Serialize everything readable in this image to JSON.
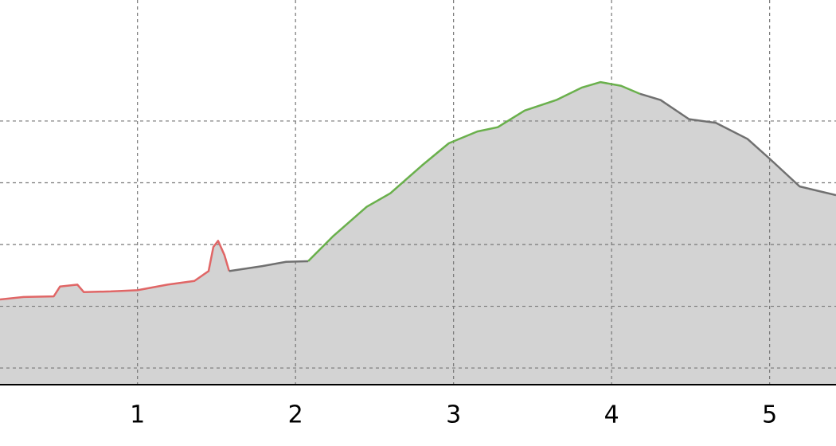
{
  "chart_data": {
    "type": "area",
    "xlim": [
      0.13,
      5.42
    ],
    "xticks": [
      1,
      2,
      3,
      4,
      5
    ],
    "ylim": [
      -0.27,
      5.96
    ],
    "yticks": [
      0,
      1,
      2,
      3,
      4
    ],
    "grid": true,
    "fill_color": "#d3d3d3",
    "series": [
      {
        "color": "#e06666",
        "x": [
          0.13,
          0.28,
          0.47,
          0.51,
          0.62,
          0.66,
          0.83,
          1.0,
          1.19,
          1.36,
          1.45,
          1.48,
          1.51,
          1.55,
          1.58
        ],
        "values": [
          1.11,
          1.15,
          1.16,
          1.32,
          1.35,
          1.23,
          1.24,
          1.26,
          1.35,
          1.41,
          1.57,
          1.96,
          2.06,
          1.83,
          1.57
        ]
      },
      {
        "color": "#707070",
        "x": [
          1.58,
          1.79,
          1.94,
          2.08
        ],
        "values": [
          1.57,
          1.65,
          1.72,
          1.73
        ]
      },
      {
        "color": "#6ab04c",
        "x": [
          2.08,
          2.24,
          2.45,
          2.6,
          2.8,
          2.97,
          3.15,
          3.28,
          3.45,
          3.65,
          3.81,
          3.93,
          4.06,
          4.18
        ],
        "values": [
          1.73,
          2.14,
          2.61,
          2.83,
          3.28,
          3.64,
          3.83,
          3.9,
          4.17,
          4.34,
          4.54,
          4.63,
          4.57,
          4.44
        ]
      },
      {
        "color": "#707070",
        "x": [
          4.18,
          4.31,
          4.49,
          4.66,
          4.86,
          5.0,
          5.19,
          5.42
        ],
        "values": [
          4.44,
          4.34,
          4.03,
          3.97,
          3.71,
          3.39,
          2.94,
          2.8
        ]
      }
    ]
  }
}
